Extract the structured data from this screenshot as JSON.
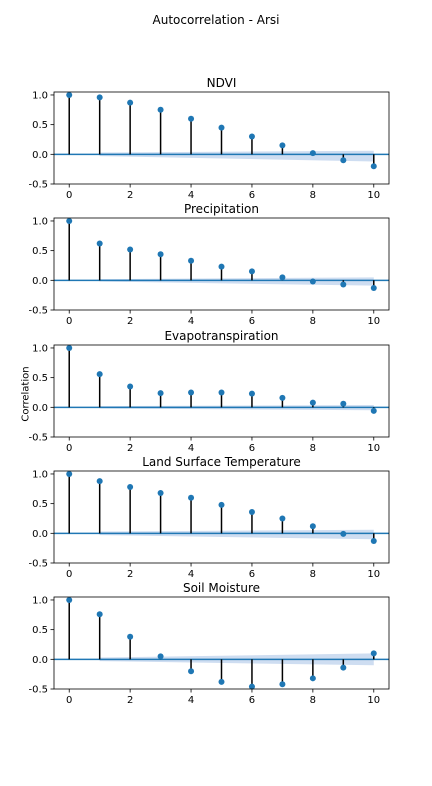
{
  "figure": {
    "suptitle": "Autocorrelation - Arsi",
    "ylabel": "Correlation"
  },
  "colors": {
    "marker": "#1f77b4",
    "stem": "#000000",
    "zero_line": "#1f77b4",
    "confidence_band": "#aec7e8"
  },
  "chart_data": [
    {
      "type": "scatter",
      "subtype": "stem",
      "title": "NDVI",
      "xlabel": "",
      "ylabel": "",
      "xlim": [
        -0.5,
        10.5
      ],
      "ylim": [
        -0.5,
        1.05
      ],
      "xticks": [
        0,
        2,
        4,
        6,
        8,
        10
      ],
      "yticks": [
        -0.5,
        0.0,
        0.5,
        1.0
      ],
      "x": [
        0,
        1,
        2,
        3,
        4,
        5,
        6,
        7,
        8,
        9,
        10
      ],
      "values": [
        1.0,
        0.96,
        0.87,
        0.75,
        0.6,
        0.45,
        0.3,
        0.15,
        0.02,
        -0.1,
        -0.2
      ],
      "conf_band": {
        "x": [
          1,
          10
        ],
        "lower_start": -0.03,
        "lower_end": -0.12,
        "upper_start": 0.03,
        "upper_end": 0.06
      }
    },
    {
      "type": "scatter",
      "subtype": "stem",
      "title": "Precipitation",
      "xlabel": "",
      "ylabel": "",
      "xlim": [
        -0.5,
        10.5
      ],
      "ylim": [
        -0.5,
        1.05
      ],
      "xticks": [
        0,
        2,
        4,
        6,
        8,
        10
      ],
      "yticks": [
        -0.5,
        0.0,
        0.5,
        1.0
      ],
      "x": [
        0,
        1,
        2,
        3,
        4,
        5,
        6,
        7,
        8,
        9,
        10
      ],
      "values": [
        1.0,
        0.62,
        0.52,
        0.44,
        0.33,
        0.23,
        0.15,
        0.05,
        -0.02,
        -0.07,
        -0.13
      ],
      "conf_band": {
        "x": [
          1,
          10
        ],
        "lower_start": -0.02,
        "lower_end": -0.09,
        "upper_start": 0.02,
        "upper_end": 0.05
      }
    },
    {
      "type": "scatter",
      "subtype": "stem",
      "title": "Evapotranspiration",
      "xlabel": "",
      "ylabel": "Correlation",
      "xlim": [
        -0.5,
        10.5
      ],
      "ylim": [
        -0.5,
        1.05
      ],
      "xticks": [
        0,
        2,
        4,
        6,
        8,
        10
      ],
      "yticks": [
        -0.5,
        0.0,
        0.5,
        1.0
      ],
      "x": [
        0,
        1,
        2,
        3,
        4,
        5,
        6,
        7,
        8,
        9,
        10
      ],
      "values": [
        1.0,
        0.56,
        0.35,
        0.24,
        0.25,
        0.25,
        0.23,
        0.16,
        0.08,
        0.06,
        -0.06
      ],
      "conf_band": {
        "x": [
          1,
          10
        ],
        "lower_start": -0.02,
        "lower_end": -0.05,
        "upper_start": 0.02,
        "upper_end": 0.04
      }
    },
    {
      "type": "scatter",
      "subtype": "stem",
      "title": "Land Surface Temperature",
      "xlabel": "",
      "ylabel": "",
      "xlim": [
        -0.5,
        10.5
      ],
      "ylim": [
        -0.5,
        1.05
      ],
      "xticks": [
        0,
        2,
        4,
        6,
        8,
        10
      ],
      "yticks": [
        -0.5,
        0.0,
        0.5,
        1.0
      ],
      "x": [
        0,
        1,
        2,
        3,
        4,
        5,
        6,
        7,
        8,
        9,
        10
      ],
      "values": [
        1.0,
        0.88,
        0.78,
        0.68,
        0.6,
        0.48,
        0.36,
        0.25,
        0.12,
        -0.01,
        -0.13
      ],
      "conf_band": {
        "x": [
          1,
          10
        ],
        "lower_start": -0.03,
        "lower_end": -0.1,
        "upper_start": 0.03,
        "upper_end": 0.06
      }
    },
    {
      "type": "scatter",
      "subtype": "stem",
      "title": "Soil Moisture",
      "xlabel": "",
      "ylabel": "",
      "xlim": [
        -0.5,
        10.5
      ],
      "ylim": [
        -0.5,
        1.05
      ],
      "xticks": [
        0,
        2,
        4,
        6,
        8,
        10
      ],
      "yticks": [
        -0.5,
        0.0,
        0.5,
        1.0
      ],
      "x": [
        0,
        1,
        2,
        3,
        4,
        5,
        6,
        7,
        8,
        9,
        10
      ],
      "values": [
        1.0,
        0.76,
        0.38,
        0.05,
        -0.2,
        -0.38,
        -0.46,
        -0.42,
        -0.32,
        -0.14,
        0.1
      ],
      "conf_band": {
        "x": [
          1,
          10
        ],
        "lower_start": -0.03,
        "lower_end": -0.1,
        "upper_start": 0.03,
        "upper_end": 0.1
      }
    }
  ]
}
